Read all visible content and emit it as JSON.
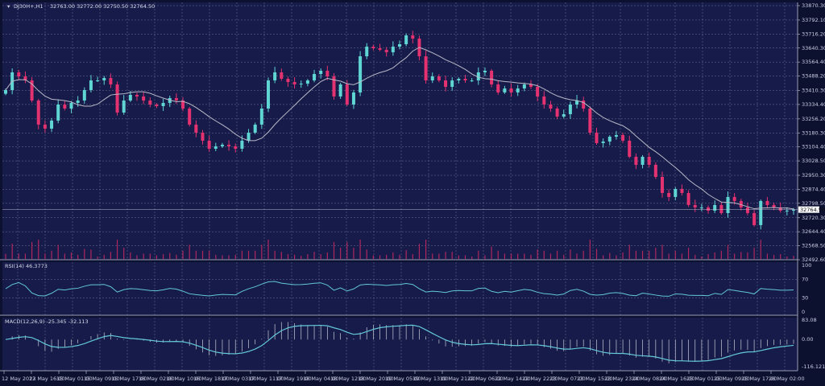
{
  "header": {
    "symbol_label": "DJ30H+,H1",
    "ohlc_readout": "32763.00 32772.00 32750.50 32764.50"
  },
  "colors": {
    "background": "#161b4a",
    "bull": "#5fd6d3",
    "bear": "#e4316f",
    "moving_average": "#b9b9c6",
    "grid": "#6f7394",
    "volume": "#b0275e",
    "indicator_line": "#63c8d8",
    "histogram": "#c9cbd6"
  },
  "chart_data": [
    {
      "type": "candlestick",
      "pane": "main",
      "ylim": [
        32492.6,
        33870.3
      ],
      "y_tick_labels": [
        "33870.30",
        "33792.10",
        "33716.20",
        "33640.30",
        "33564.40",
        "33488.20",
        "33410.30",
        "33334.40",
        "33256.20",
        "33180.30",
        "33104.40",
        "33028.50",
        "32950.30",
        "32874.40",
        "32798.50",
        "32720.30",
        "32644.40",
        "32568.50",
        "32492.60"
      ],
      "current_price": "32764.50",
      "x_tick_labels": [
        "12 May 2023",
        "12 May 16:00",
        "15 May 01:00",
        "15 May 09:00",
        "15 May 17:00",
        "16 May 02:00",
        "16 May 10:00",
        "16 May 18:00",
        "17 May 03:00",
        "17 May 11:00",
        "17 May 19:00",
        "18 May 04:00",
        "18 May 12:00",
        "18 May 20:00",
        "19 May 05:00",
        "19 May 13:00",
        "19 May 21:00",
        "22 May 06:00",
        "22 May 14:00",
        "22 May 22:00",
        "23 May 07:00",
        "23 May 15:00",
        "23 May 23:00",
        "24 May 08:00",
        "24 May 16:00",
        "25 May 01:00",
        "25 May 09:00",
        "25 May 17:00",
        "26 May 02:00"
      ],
      "close": [
        33412.6,
        33508.5,
        33486.7,
        33464.9,
        33355.9,
        33225.2,
        33203.4,
        33247.0,
        33334.1,
        33312.3,
        33342.9,
        33355.9,
        33412.6,
        33464.9,
        33464.9,
        33478.0,
        33443.1,
        33290.6,
        33355.9,
        33386.5,
        33377.7,
        33355.9,
        33334.1,
        33325.4,
        33342.9,
        33369.0,
        33355.9,
        33312.3,
        33225.2,
        33181.6,
        33138.0,
        33094.4,
        33107.5,
        33116.2,
        33107.5,
        33094.4,
        33138.0,
        33181.6,
        33225.2,
        33312.3,
        33464.9,
        33508.5,
        33473.6,
        33456.2,
        33443.1,
        33447.5,
        33464.9,
        33499.8,
        33517.2,
        33486.7,
        33377.7,
        33443.1,
        33334.1,
        33399.5,
        33595.7,
        33648.0,
        33639.3,
        33630.6,
        33617.5,
        33648.0,
        33661.1,
        33709.0,
        33691.6,
        33595.7,
        33464.9,
        33486.7,
        33464.9,
        33430.0,
        33464.9,
        33473.6,
        33464.9,
        33464.9,
        33508.5,
        33517.2,
        33443.1,
        33399.5,
        33421.3,
        33399.5,
        33421.3,
        33443.1,
        33430.0,
        33377.7,
        33334.1,
        33312.3,
        33268.8,
        33281.8,
        33334.1,
        33355.9,
        33312.3,
        33181.6,
        33124.9,
        33133.6,
        33159.8,
        33168.5,
        33138.0,
        33050.8,
        33007.2,
        33050.8,
        33007.2,
        32941.8,
        32854.7,
        32832.9,
        32876.4,
        32854.7,
        32789.3,
        32776.2,
        32776.2,
        32758.8,
        32789.3,
        32745.7,
        32832.9,
        32811.1,
        32776.2,
        32745.7,
        32680.3,
        32811.1,
        32789.3,
        32776.2,
        32758.8,
        32758.8,
        32764.5
      ]
    },
    {
      "type": "line",
      "pane": "rsi",
      "label": "RSI(14) 46.3773",
      "ylim": [
        0,
        100
      ],
      "y_tick_labels": [
        "100",
        "70",
        "30",
        "0"
      ],
      "levels": [
        70,
        30
      ]
    },
    {
      "type": "histogram+line",
      "pane": "macd",
      "label": "MACD(12,26,9) -25.345 -32.113",
      "ylim": [
        -116.121,
        83.08
      ],
      "y_tick_labels": [
        "83.08",
        "0.00",
        "-116.121"
      ]
    }
  ]
}
